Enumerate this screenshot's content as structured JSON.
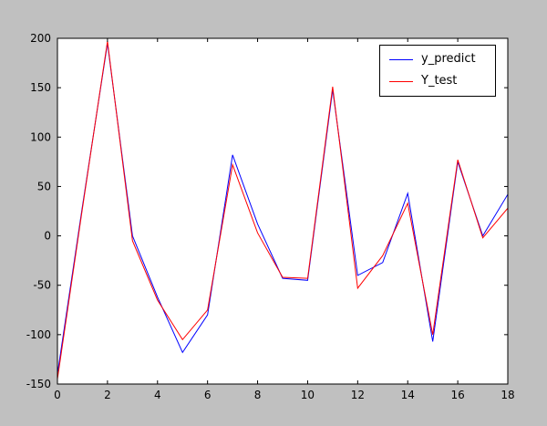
{
  "figure": {
    "background_color": "#c0c0c0",
    "axes_background": "#ffffff",
    "axes_edge_color": "#000000",
    "tick_color": "#000000",
    "tick_label_color": "#000000"
  },
  "legend": {
    "position": "upper right",
    "items": [
      {
        "label": "y_predict",
        "color": "#0000ff"
      },
      {
        "label": "Y_test",
        "color": "#ff0000"
      }
    ]
  },
  "chart_data": {
    "type": "line",
    "title": "",
    "xlabel": "",
    "ylabel": "",
    "grid": false,
    "legend_position": "upper right",
    "xlim": [
      0,
      18
    ],
    "ylim": [
      -150,
      200
    ],
    "xticks": [
      0,
      2,
      4,
      6,
      8,
      10,
      12,
      14,
      16,
      18
    ],
    "yticks": [
      -150,
      -100,
      -50,
      0,
      50,
      100,
      150,
      200
    ],
    "x": [
      0,
      1,
      2,
      3,
      4,
      5,
      6,
      7,
      8,
      9,
      10,
      11,
      12,
      13,
      14,
      15,
      16,
      17,
      18
    ],
    "series": [
      {
        "name": "y_predict",
        "color": "#0000ff",
        "values": [
          -140,
          30,
          195,
          0,
          -62,
          -118,
          -80,
          82,
          12,
          -43,
          -45,
          148,
          -40,
          -27,
          43,
          -107,
          75,
          0,
          42
        ]
      },
      {
        "name": "Y_test",
        "color": "#ff0000",
        "values": [
          -145,
          28,
          197,
          -5,
          -65,
          -105,
          -75,
          72,
          3,
          -42,
          -43,
          151,
          -53,
          -20,
          33,
          -100,
          77,
          -2,
          28
        ]
      }
    ]
  }
}
